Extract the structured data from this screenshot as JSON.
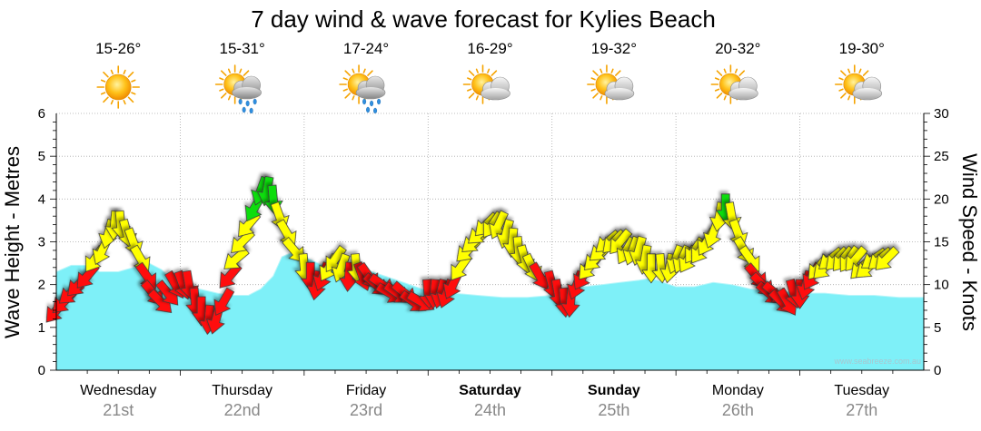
{
  "chart_data": {
    "type": "area+arrows",
    "title": "7 day wind & wave forecast for Kylies Beach",
    "ylabel_left": "Wave Height - Metres",
    "ylabel_right": "Wind Speed - Knots",
    "ylim_left": [
      0,
      6
    ],
    "ylim_right": [
      0,
      30
    ],
    "yticks_left": [
      "0",
      "1",
      "2",
      "3",
      "4",
      "5",
      "6"
    ],
    "yticks_right": [
      "0",
      "5",
      "10",
      "15",
      "20",
      "25",
      "30"
    ],
    "watermark": "www.seabreeze.com.au",
    "days": [
      {
        "name": "Wednesday",
        "date": "21st",
        "range": "15-26°",
        "weather": "sunny",
        "bold": false
      },
      {
        "name": "Thursday",
        "date": "22nd",
        "range": "15-31°",
        "weather": "storm-showers",
        "bold": false
      },
      {
        "name": "Friday",
        "date": "23rd",
        "range": "17-24°",
        "weather": "storm-showers",
        "bold": false
      },
      {
        "name": "Saturday",
        "date": "24th",
        "range": "16-29°",
        "weather": "partly-cloudy",
        "bold": true
      },
      {
        "name": "Sunday",
        "date": "25th",
        "range": "19-32°",
        "weather": "partly-cloudy",
        "bold": true
      },
      {
        "name": "Monday",
        "date": "26th",
        "range": "20-32°",
        "weather": "partly-cloudy",
        "bold": false
      },
      {
        "name": "Tuesday",
        "date": "27th",
        "range": "19-30°",
        "weather": "partly-cloudy",
        "bold": false
      }
    ],
    "wave_height": {
      "name": "Wave Height (m)",
      "color": "#7ef0f8",
      "points": [
        [
          0.0,
          2.3
        ],
        [
          0.12,
          2.45
        ],
        [
          0.25,
          2.45
        ],
        [
          0.35,
          2.3
        ],
        [
          0.5,
          2.3
        ],
        [
          0.62,
          2.4
        ],
        [
          0.75,
          2.5
        ],
        [
          0.85,
          2.35
        ],
        [
          1.0,
          1.95
        ],
        [
          1.15,
          1.9
        ],
        [
          1.3,
          1.8
        ],
        [
          1.4,
          1.75
        ],
        [
          1.55,
          1.75
        ],
        [
          1.65,
          1.9
        ],
        [
          1.75,
          2.2
        ],
        [
          1.82,
          2.65
        ],
        [
          1.9,
          2.75
        ],
        [
          2.0,
          2.65
        ],
        [
          2.15,
          2.45
        ],
        [
          2.3,
          2.4
        ],
        [
          2.45,
          2.4
        ],
        [
          2.6,
          2.25
        ],
        [
          2.75,
          2.1
        ],
        [
          2.9,
          1.95
        ],
        [
          3.0,
          1.85
        ],
        [
          3.2,
          1.8
        ],
        [
          3.4,
          1.75
        ],
        [
          3.6,
          1.7
        ],
        [
          3.8,
          1.7
        ],
        [
          4.0,
          1.75
        ],
        [
          4.1,
          1.8
        ],
        [
          4.25,
          1.95
        ],
        [
          4.4,
          2.0
        ],
        [
          4.55,
          2.05
        ],
        [
          4.7,
          2.1
        ],
        [
          4.8,
          2.15
        ],
        [
          4.9,
          2.05
        ],
        [
          5.0,
          1.95
        ],
        [
          5.15,
          1.95
        ],
        [
          5.3,
          2.05
        ],
        [
          5.45,
          2.0
        ],
        [
          5.6,
          1.9
        ],
        [
          5.75,
          1.85
        ],
        [
          5.85,
          1.85
        ],
        [
          6.0,
          1.8
        ],
        [
          6.2,
          1.8
        ],
        [
          6.4,
          1.75
        ],
        [
          6.6,
          1.75
        ],
        [
          6.8,
          1.7
        ],
        [
          7.0,
          1.7
        ]
      ]
    },
    "wind": {
      "name": "Wind Speed (knots)",
      "color_scale": {
        "green": ">= 19 kn",
        "yellow": "12-19 kn",
        "red": "< 12 kn"
      },
      "points": [
        [
          0.0,
          7,
          220
        ],
        [
          0.06,
          8,
          225
        ],
        [
          0.12,
          9,
          230
        ],
        [
          0.18,
          10,
          225
        ],
        [
          0.25,
          11,
          220
        ],
        [
          0.31,
          13,
          215
        ],
        [
          0.37,
          14,
          205
        ],
        [
          0.42,
          16,
          195
        ],
        [
          0.47,
          17,
          185
        ],
        [
          0.52,
          17,
          175
        ],
        [
          0.57,
          16,
          165
        ],
        [
          0.62,
          15,
          160
        ],
        [
          0.68,
          13,
          150
        ],
        [
          0.73,
          11,
          145
        ],
        [
          0.78,
          9,
          140
        ],
        [
          0.84,
          8,
          135
        ],
        [
          0.9,
          9,
          140
        ],
        [
          0.96,
          10,
          150
        ],
        [
          1.02,
          10,
          160
        ],
        [
          1.07,
          10,
          170
        ],
        [
          1.12,
          8,
          175
        ],
        [
          1.17,
          7,
          180
        ],
        [
          1.23,
          6,
          185
        ],
        [
          1.29,
          6,
          195
        ],
        [
          1.35,
          8,
          210
        ],
        [
          1.4,
          11,
          220
        ],
        [
          1.45,
          13,
          230
        ],
        [
          1.5,
          15,
          225
        ],
        [
          1.55,
          17,
          220
        ],
        [
          1.6,
          19,
          210
        ],
        [
          1.65,
          21,
          200
        ],
        [
          1.7,
          21,
          190
        ],
        [
          1.75,
          20,
          175
        ],
        [
          1.8,
          18,
          160
        ],
        [
          1.86,
          16,
          150
        ],
        [
          1.92,
          14,
          140
        ],
        [
          2.0,
          12,
          175
        ],
        [
          2.05,
          11,
          180
        ],
        [
          2.1,
          10,
          190
        ],
        [
          2.15,
          11,
          200
        ],
        [
          2.2,
          12,
          210
        ],
        [
          2.25,
          13,
          215
        ],
        [
          2.3,
          12,
          200
        ],
        [
          2.36,
          11,
          185
        ],
        [
          2.42,
          12,
          175
        ],
        [
          2.47,
          11,
          160
        ],
        [
          2.52,
          11,
          145
        ],
        [
          2.58,
          10,
          130
        ],
        [
          2.63,
          10,
          125
        ],
        [
          2.69,
          9,
          120
        ],
        [
          2.75,
          9,
          125
        ],
        [
          2.81,
          9,
          130
        ],
        [
          2.88,
          8,
          125
        ],
        [
          2.94,
          8,
          120
        ],
        [
          3.0,
          9,
          175
        ],
        [
          3.05,
          9,
          185
        ],
        [
          3.1,
          9,
          195
        ],
        [
          3.15,
          9,
          200
        ],
        [
          3.2,
          10,
          205
        ],
        [
          3.26,
          12,
          215
        ],
        [
          3.32,
          14,
          225
        ],
        [
          3.37,
          15,
          230
        ],
        [
          3.42,
          16,
          230
        ],
        [
          3.47,
          17,
          225
        ],
        [
          3.52,
          17,
          215
        ],
        [
          3.57,
          17,
          205
        ],
        [
          3.63,
          16,
          195
        ],
        [
          3.68,
          15,
          185
        ],
        [
          3.73,
          14,
          175
        ],
        [
          3.78,
          13,
          165
        ],
        [
          3.84,
          12,
          155
        ],
        [
          3.9,
          11,
          150
        ],
        [
          4.0,
          10,
          165
        ],
        [
          4.05,
          9,
          170
        ],
        [
          4.1,
          8,
          175
        ],
        [
          4.15,
          8,
          185
        ],
        [
          4.2,
          10,
          200
        ],
        [
          4.25,
          11,
          210
        ],
        [
          4.3,
          12,
          220
        ],
        [
          4.35,
          13,
          225
        ],
        [
          4.4,
          14,
          230
        ],
        [
          4.45,
          15,
          230
        ],
        [
          4.5,
          15,
          225
        ],
        [
          4.55,
          15,
          220
        ],
        [
          4.6,
          14,
          210
        ],
        [
          4.65,
          14,
          200
        ],
        [
          4.7,
          14,
          195
        ],
        [
          4.75,
          13,
          190
        ],
        [
          4.8,
          12,
          180
        ],
        [
          4.88,
          12,
          175
        ],
        [
          4.95,
          12,
          190
        ],
        [
          5.0,
          13,
          200
        ],
        [
          5.05,
          13,
          205
        ],
        [
          5.1,
          13,
          210
        ],
        [
          5.15,
          14,
          215
        ],
        [
          5.2,
          14,
          215
        ],
        [
          5.25,
          15,
          210
        ],
        [
          5.3,
          16,
          200
        ],
        [
          5.35,
          18,
          190
        ],
        [
          5.4,
          19,
          180
        ],
        [
          5.45,
          18,
          170
        ],
        [
          5.5,
          16,
          160
        ],
        [
          5.55,
          14,
          150
        ],
        [
          5.6,
          13,
          145
        ],
        [
          5.65,
          11,
          140
        ],
        [
          5.7,
          10,
          135
        ],
        [
          5.75,
          9,
          130
        ],
        [
          5.8,
          9,
          130
        ],
        [
          5.85,
          8,
          135
        ],
        [
          5.9,
          8,
          150
        ],
        [
          5.95,
          9,
          165
        ],
        [
          6.0,
          9,
          180
        ],
        [
          6.05,
          10,
          195
        ],
        [
          6.1,
          11,
          210
        ],
        [
          6.15,
          12,
          220
        ],
        [
          6.2,
          12,
          225
        ],
        [
          6.25,
          13,
          230
        ],
        [
          6.3,
          13,
          225
        ],
        [
          6.35,
          13,
          220
        ],
        [
          6.4,
          13,
          215
        ],
        [
          6.45,
          13,
          220
        ],
        [
          6.5,
          12,
          225
        ],
        [
          6.55,
          12,
          230
        ],
        [
          6.6,
          13,
          235
        ],
        [
          6.65,
          13,
          230
        ],
        [
          6.7,
          13,
          225
        ]
      ]
    }
  }
}
